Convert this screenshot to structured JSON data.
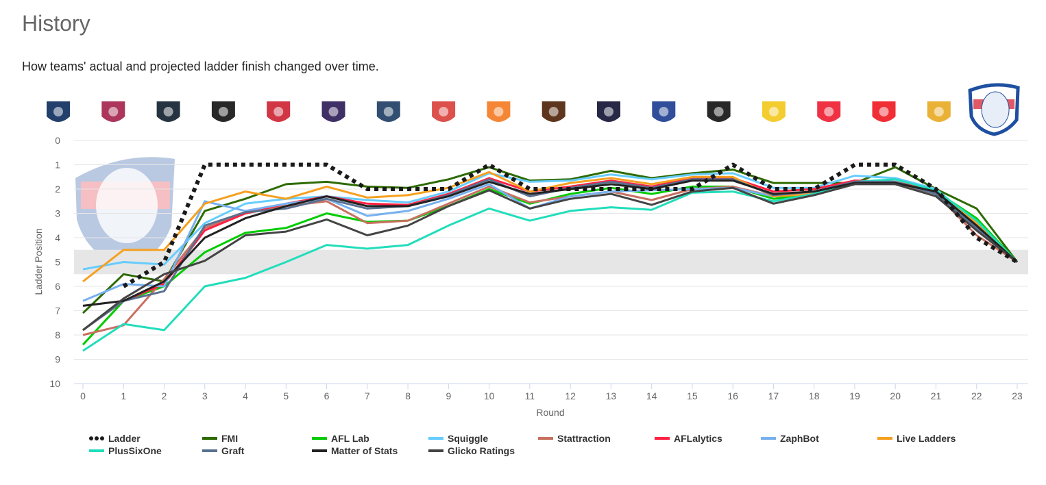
{
  "header": {
    "title": "History",
    "subtitle": "How teams' actual and projected ladder finish changed over time."
  },
  "team_logos": [
    {
      "icon": "adelaide-crows-logo",
      "color": "#0b2a5b"
    },
    {
      "icon": "brisbane-lions-logo",
      "color": "#a3204a"
    },
    {
      "icon": "carlton-logo",
      "color": "#0e1e2d"
    },
    {
      "icon": "collingwood-logo",
      "color": "#111111"
    },
    {
      "icon": "essendon-logo",
      "color": "#cc2031"
    },
    {
      "icon": "fremantle-logo",
      "color": "#2a1a54"
    },
    {
      "icon": "geelong-logo",
      "color": "#1c3c63"
    },
    {
      "icon": "gold-coast-logo",
      "color": "#d93e39"
    },
    {
      "icon": "gws-giants-logo",
      "color": "#f47920"
    },
    {
      "icon": "hawthorn-logo",
      "color": "#4d2004"
    },
    {
      "icon": "melbourne-logo",
      "color": "#0f1131"
    },
    {
      "icon": "north-melbourne-logo",
      "color": "#1a3b8f"
    },
    {
      "icon": "port-adelaide-logo",
      "color": "#111111"
    },
    {
      "icon": "richmond-logo",
      "color": "#f2c81a"
    },
    {
      "icon": "st-kilda-logo",
      "color": "#ed1b2f"
    },
    {
      "icon": "sydney-swans-logo",
      "color": "#ed171f"
    },
    {
      "icon": "west-coast-logo",
      "color": "#e8a821"
    },
    {
      "icon": "western-bulldogs-logo",
      "color": "#1e4fa0"
    }
  ],
  "chart_data": {
    "type": "line",
    "title": "",
    "xlabel": "Round",
    "ylabel": "Ladder Position",
    "x": [
      0,
      1,
      2,
      3,
      4,
      5,
      6,
      7,
      8,
      9,
      10,
      11,
      12,
      13,
      14,
      15,
      16,
      17,
      18,
      19,
      20,
      21,
      22,
      23
    ],
    "xlim": [
      0,
      23
    ],
    "ylim": [
      0,
      10
    ],
    "y_inverted": true,
    "yticks": [
      0,
      1,
      2,
      3,
      4,
      5,
      6,
      7,
      8,
      9,
      10
    ],
    "grid": true,
    "highlight_band": [
      4.5,
      5.5
    ],
    "legend_position": "bottom",
    "series": [
      {
        "name": "Ladder",
        "color": "#1a1a1a",
        "dashed": true,
        "values": [
          null,
          6,
          5,
          1,
          1,
          1,
          1,
          2,
          2,
          2,
          1,
          2,
          2,
          2,
          2,
          2,
          1,
          2,
          2,
          1,
          1,
          2,
          4,
          5
        ]
      },
      {
        "name": "FMI",
        "color": "#2d6a00",
        "values": [
          7.1,
          5.5,
          5.8,
          2.9,
          2.4,
          1.8,
          1.7,
          1.9,
          1.95,
          1.6,
          1.1,
          1.65,
          1.6,
          1.25,
          1.55,
          1.35,
          1.2,
          1.75,
          1.75,
          1.75,
          1.1,
          2.0,
          2.8,
          5
        ]
      },
      {
        "name": "AFL Lab",
        "color": "#00cc00",
        "values": [
          8.4,
          6.6,
          6.0,
          4.6,
          3.8,
          3.6,
          3.0,
          3.35,
          3.3,
          2.7,
          2.0,
          2.6,
          2.2,
          1.95,
          2.2,
          1.9,
          1.9,
          2.4,
          2.2,
          1.8,
          1.7,
          2.1,
          3.2,
          5
        ]
      },
      {
        "name": "Squiggle",
        "color": "#66ccff",
        "values": [
          5.3,
          5.0,
          5.1,
          3.4,
          2.6,
          2.4,
          2.3,
          2.45,
          2.55,
          2.1,
          1.35,
          1.7,
          1.65,
          1.4,
          1.6,
          1.4,
          1.35,
          1.95,
          1.95,
          1.45,
          1.55,
          2.0,
          3.4,
          5
        ]
      },
      {
        "name": "Stattraction",
        "color": "#c87060",
        "values": [
          8.0,
          7.6,
          5.7,
          3.6,
          3.0,
          2.7,
          2.5,
          3.4,
          3.3,
          2.6,
          1.9,
          2.55,
          2.3,
          2.1,
          2.45,
          2.0,
          1.9,
          2.3,
          2.1,
          1.75,
          1.75,
          2.2,
          3.9,
          5
        ]
      },
      {
        "name": "AFLalytics",
        "color": "#ff2244",
        "values": [
          7.8,
          6.6,
          5.9,
          3.7,
          3.0,
          2.6,
          2.3,
          2.6,
          2.65,
          2.2,
          1.55,
          2.1,
          1.9,
          1.65,
          1.9,
          1.55,
          1.55,
          2.1,
          2.0,
          1.65,
          1.7,
          2.1,
          3.6,
          5
        ]
      },
      {
        "name": "ZaphBot",
        "color": "#77b0ee",
        "values": [
          6.6,
          5.9,
          6.0,
          2.5,
          2.9,
          2.6,
          2.4,
          3.1,
          2.9,
          2.4,
          1.8,
          2.8,
          2.3,
          2.1,
          2.05,
          2.0,
          1.95,
          2.3,
          2.1,
          1.7,
          1.7,
          2.2,
          3.5,
          5
        ]
      },
      {
        "name": "Live Ladders",
        "color": "#f5a020",
        "values": [
          5.8,
          4.5,
          4.5,
          2.6,
          2.1,
          2.4,
          1.9,
          2.35,
          2.25,
          1.95,
          1.3,
          2.1,
          1.75,
          1.55,
          1.8,
          1.5,
          1.5,
          2.3,
          2.2,
          1.7,
          1.8,
          2.1,
          3.4,
          5
        ]
      },
      {
        "name": "PlusSixOne",
        "color": "#22ddbb",
        "values": [
          8.65,
          7.55,
          7.8,
          6.0,
          5.65,
          5.0,
          4.3,
          4.45,
          4.3,
          3.5,
          2.8,
          3.3,
          2.9,
          2.75,
          2.85,
          2.15,
          2.1,
          2.5,
          2.2,
          1.7,
          1.6,
          2.05,
          3.3,
          5
        ]
      },
      {
        "name": "Graft",
        "color": "#5a7090",
        "values": [
          7.8,
          6.6,
          6.2,
          3.5,
          2.95,
          2.8,
          2.4,
          2.8,
          2.7,
          2.25,
          1.6,
          2.3,
          1.95,
          1.7,
          1.95,
          1.6,
          1.6,
          2.25,
          2.1,
          1.7,
          1.7,
          2.2,
          3.6,
          5
        ]
      },
      {
        "name": "Matter of Stats",
        "color": "#222222",
        "values": [
          6.8,
          6.6,
          5.8,
          4.0,
          3.2,
          2.7,
          2.3,
          2.7,
          2.7,
          2.3,
          1.7,
          2.2,
          2.0,
          1.8,
          2.0,
          1.65,
          1.65,
          2.2,
          2.1,
          1.75,
          1.75,
          2.1,
          3.5,
          5
        ]
      },
      {
        "name": "Glicko Ratings",
        "color": "#444444",
        "values": [
          7.8,
          6.5,
          5.5,
          4.95,
          3.9,
          3.75,
          3.25,
          3.9,
          3.5,
          2.7,
          2.05,
          2.8,
          2.4,
          2.2,
          2.65,
          2.1,
          1.95,
          2.6,
          2.25,
          1.8,
          1.8,
          2.3,
          3.7,
          5
        ]
      }
    ]
  }
}
